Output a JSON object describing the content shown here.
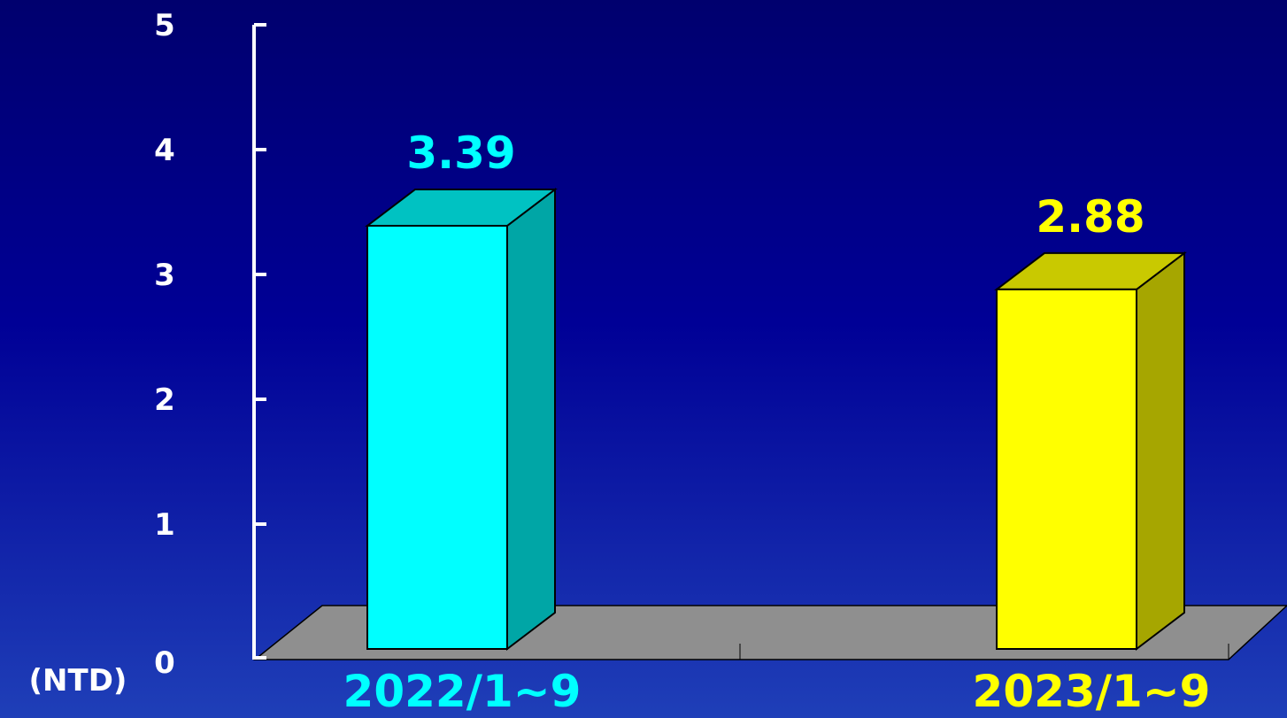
{
  "chart_data": {
    "type": "bar",
    "style": "3d",
    "categories": [
      "2022/1~9",
      "2023/1~9"
    ],
    "values": [
      3.39,
      2.88
    ],
    "data_labels": [
      "3.39",
      "2.88"
    ],
    "ylim": [
      0,
      5
    ],
    "yticks": [
      "0",
      "1",
      "2",
      "3",
      "4",
      "5"
    ],
    "yunit": "(NTD)",
    "grid": false,
    "legend": "none"
  },
  "colors": {
    "bar_2022_front": "#00ffff",
    "bar_2022_top": "#00c2c2",
    "bar_2022_side": "#00a6a6",
    "bar_2023_front": "#ffff00",
    "bar_2023_top": "#c9c900",
    "bar_2023_side": "#a6a600",
    "label_2022": "#00ffff",
    "label_2023": "#ffff00",
    "axis_text": "#ffffff",
    "floor": "#8f8f8f"
  }
}
